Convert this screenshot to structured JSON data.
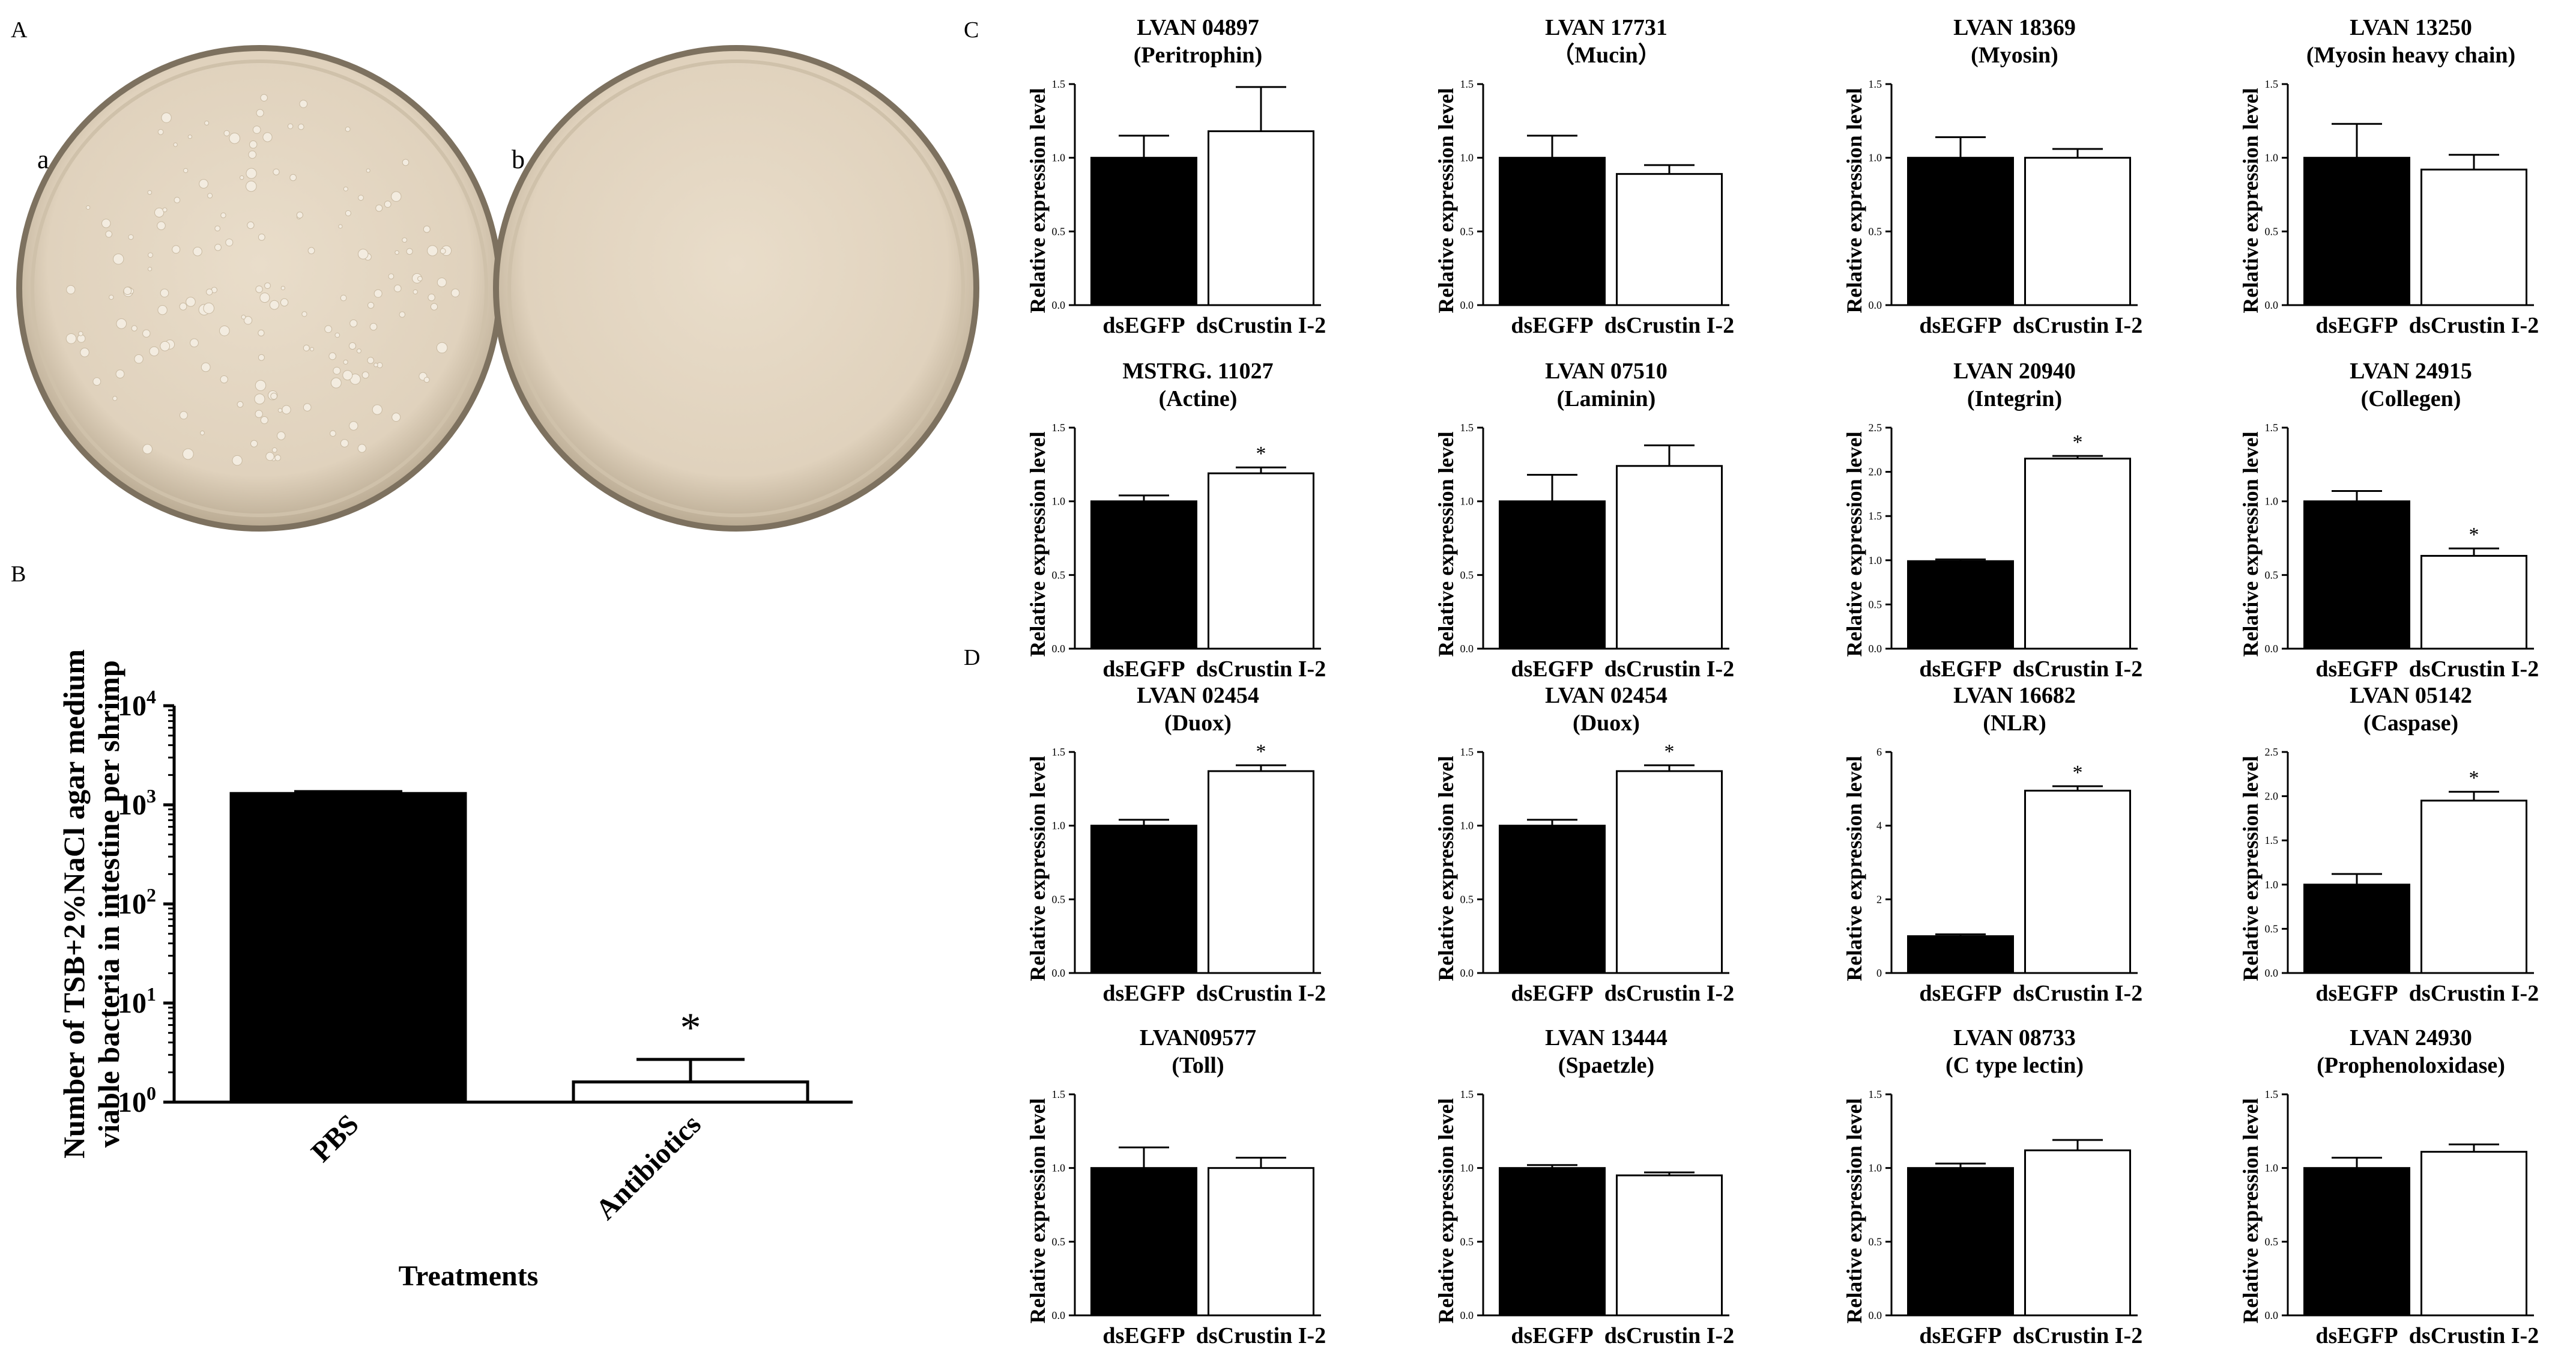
{
  "panel_labels": {
    "A": "A",
    "B": "B",
    "C": "C",
    "D": "D"
  },
  "plates": {
    "a": {
      "label": "a",
      "colonies": "many"
    },
    "b": {
      "label": "b",
      "colonies": "none"
    }
  },
  "colors": {
    "ink": "#000000",
    "plate_fill": "#e3d6c2",
    "plate_rim": "#8f8371",
    "colony": "#f4efe6"
  },
  "chart_data": [
    {
      "id": "B",
      "type": "bar",
      "scale": "log",
      "categories": [
        "PBS",
        "Antibiotics"
      ],
      "values": [
        1300,
        1.6
      ],
      "errors": [
        60,
        1.1
      ],
      "fills": [
        "#000000",
        "#ffffff"
      ],
      "sig": [
        "",
        "*"
      ],
      "ylabel_lines": [
        "Number of TSB+2%NaCl agar medium",
        "viable bacteria in intestine per shrimp"
      ],
      "xlabel": "Treatments",
      "yticks": [
        1,
        10,
        100,
        1000,
        10000
      ],
      "ytick_labels": [
        {
          "base": "10",
          "exp": "0"
        },
        {
          "base": "10",
          "exp": "1"
        },
        {
          "base": "10",
          "exp": "2"
        },
        {
          "base": "10",
          "exp": "3"
        },
        {
          "base": "10",
          "exp": "4"
        }
      ],
      "ylim": [
        1,
        10000
      ]
    },
    {
      "id": "C1",
      "type": "bar",
      "title": "LVAN 04897",
      "subtitle": "(Peritrophin)",
      "ylabel": "Relative expression level",
      "categories": [
        "dsEGFP",
        "dsCrustin I-2"
      ],
      "values": [
        1.0,
        1.18
      ],
      "errors": [
        0.15,
        0.3
      ],
      "sig": [
        "",
        ""
      ],
      "ylim": [
        0,
        1.5
      ],
      "yticks": [
        0.0,
        0.5,
        1.0,
        1.5
      ],
      "ytick_labels": [
        "0.0",
        "0.5",
        "1.0",
        "1.5"
      ]
    },
    {
      "id": "C2",
      "type": "bar",
      "title": "LVAN 17731",
      "subtitle": "（Mucin）",
      "ylabel": "Relative expression level",
      "categories": [
        "dsEGFP",
        "dsCrustin I-2"
      ],
      "values": [
        1.0,
        0.89
      ],
      "errors": [
        0.15,
        0.06
      ],
      "sig": [
        "",
        ""
      ],
      "ylim": [
        0,
        1.5
      ],
      "yticks": [
        0.0,
        0.5,
        1.0,
        1.5
      ],
      "ytick_labels": [
        "0.0",
        "0.5",
        "1.0",
        "1.5"
      ]
    },
    {
      "id": "C3",
      "type": "bar",
      "title": "LVAN 18369",
      "subtitle": "(Myosin)",
      "ylabel": "Relative expression level",
      "categories": [
        "dsEGFP",
        "dsCrustin I-2"
      ],
      "values": [
        1.0,
        1.0
      ],
      "errors": [
        0.14,
        0.06
      ],
      "sig": [
        "",
        ""
      ],
      "ylim": [
        0,
        1.5
      ],
      "yticks": [
        0.0,
        0.5,
        1.0,
        1.5
      ],
      "ytick_labels": [
        "0.0",
        "0.5",
        "1.0",
        "1.5"
      ]
    },
    {
      "id": "C4",
      "type": "bar",
      "title": "LVAN 13250",
      "subtitle": "(Myosin heavy chain)",
      "ylabel": "Relative expression level",
      "categories": [
        "dsEGFP",
        "dsCrustin I-2"
      ],
      "values": [
        1.0,
        0.92
      ],
      "errors": [
        0.23,
        0.1
      ],
      "sig": [
        "",
        ""
      ],
      "ylim": [
        0,
        1.5
      ],
      "yticks": [
        0.0,
        0.5,
        1.0,
        1.5
      ],
      "ytick_labels": [
        "0.0",
        "0.5",
        "1.0",
        "1.5"
      ]
    },
    {
      "id": "C5",
      "type": "bar",
      "title": "MSTRG. 11027",
      "subtitle": "(Actine)",
      "ylabel": "Relative expression level",
      "categories": [
        "dsEGFP",
        "dsCrustin I-2"
      ],
      "values": [
        1.0,
        1.19
      ],
      "errors": [
        0.04,
        0.04
      ],
      "sig": [
        "",
        "*"
      ],
      "ylim": [
        0,
        1.5
      ],
      "yticks": [
        0.0,
        0.5,
        1.0,
        1.5
      ],
      "ytick_labels": [
        "0.0",
        "0.5",
        "1.0",
        "1.5"
      ]
    },
    {
      "id": "C6",
      "type": "bar",
      "title": "LVAN 07510",
      "subtitle": "(Laminin)",
      "ylabel": "Relative expression level",
      "categories": [
        "dsEGFP",
        "dsCrustin I-2"
      ],
      "values": [
        1.0,
        1.24
      ],
      "errors": [
        0.18,
        0.14
      ],
      "sig": [
        "",
        ""
      ],
      "ylim": [
        0,
        1.5
      ],
      "yticks": [
        0.0,
        0.5,
        1.0,
        1.5
      ],
      "ytick_labels": [
        "0.0",
        "0.5",
        "1.0",
        "1.5"
      ]
    },
    {
      "id": "C7",
      "type": "bar",
      "title": "LVAN 20940",
      "subtitle": "(Integrin)",
      "ylabel": "Relative expression level",
      "categories": [
        "dsEGFP",
        "dsCrustin I-2"
      ],
      "values": [
        0.99,
        2.15
      ],
      "errors": [
        0.02,
        0.03
      ],
      "sig": [
        "",
        "*"
      ],
      "ylim": [
        0,
        2.5
      ],
      "yticks": [
        0.0,
        0.5,
        1.0,
        1.5,
        2.0,
        2.5
      ],
      "ytick_labels": [
        "0.0",
        "0.5",
        "1.0",
        "1.5",
        "2.0",
        "2.5"
      ]
    },
    {
      "id": "C8",
      "type": "bar",
      "title": "LVAN 24915",
      "subtitle": "(Collegen)",
      "ylabel": "Relative expression level",
      "categories": [
        "dsEGFP",
        "dsCrustin I-2"
      ],
      "values": [
        1.0,
        0.63
      ],
      "errors": [
        0.07,
        0.05
      ],
      "sig": [
        "",
        "*"
      ],
      "ylim": [
        0,
        1.5
      ],
      "yticks": [
        0.0,
        0.5,
        1.0,
        1.5
      ],
      "ytick_labels": [
        "0.0",
        "0.5",
        "1.0",
        "1.5"
      ]
    },
    {
      "id": "D1",
      "type": "bar",
      "title": "LVAN 02454",
      "subtitle": "(Duox)",
      "ylabel": "Relative expression level",
      "categories": [
        "dsEGFP",
        "dsCrustin I-2"
      ],
      "values": [
        1.0,
        1.37
      ],
      "errors": [
        0.04,
        0.04
      ],
      "sig": [
        "",
        "*"
      ],
      "ylim": [
        0,
        1.5
      ],
      "yticks": [
        0.0,
        0.5,
        1.0,
        1.5
      ],
      "ytick_labels": [
        "0.0",
        "0.5",
        "1.0",
        "1.5"
      ]
    },
    {
      "id": "D2",
      "type": "bar",
      "title": "LVAN 02454",
      "subtitle": "(Duox)",
      "ylabel": "Relative expression level",
      "categories": [
        "dsEGFP",
        "dsCrustin I-2"
      ],
      "values": [
        1.0,
        1.37
      ],
      "errors": [
        0.04,
        0.04
      ],
      "sig": [
        "",
        "*"
      ],
      "ylim": [
        0,
        1.5
      ],
      "yticks": [
        0.0,
        0.5,
        1.0,
        1.5
      ],
      "ytick_labels": [
        "0.0",
        "0.5",
        "1.0",
        "1.5"
      ]
    },
    {
      "id": "D3",
      "type": "bar",
      "title": "LVAN 16682",
      "subtitle": "(NLR)",
      "ylabel": "Relative expression level",
      "categories": [
        "dsEGFP",
        "dsCrustin I-2"
      ],
      "values": [
        1.0,
        4.95
      ],
      "errors": [
        0.05,
        0.12
      ],
      "sig": [
        "",
        "*"
      ],
      "ylim": [
        0,
        6
      ],
      "yticks": [
        0,
        2,
        4,
        6
      ],
      "ytick_labels": [
        "0",
        "2",
        "4",
        "6"
      ]
    },
    {
      "id": "D4",
      "type": "bar",
      "title": "LVAN 05142",
      "subtitle": "(Caspase)",
      "ylabel": "Relative expression level",
      "categories": [
        "dsEGFP",
        "dsCrustin I-2"
      ],
      "values": [
        1.0,
        1.95
      ],
      "errors": [
        0.12,
        0.1
      ],
      "sig": [
        "",
        "*"
      ],
      "ylim": [
        0,
        2.5
      ],
      "yticks": [
        0.0,
        0.5,
        1.0,
        1.5,
        2.0,
        2.5
      ],
      "ytick_labels": [
        "0.0",
        "0.5",
        "1.0",
        "1.5",
        "2.0",
        "2.5"
      ]
    },
    {
      "id": "D5",
      "type": "bar",
      "title": "LVAN09577",
      "subtitle": "(Toll)",
      "ylabel": "Relative expression level",
      "categories": [
        "dsEGFP",
        "dsCrustin I-2"
      ],
      "values": [
        1.0,
        1.0
      ],
      "errors": [
        0.14,
        0.07
      ],
      "sig": [
        "",
        ""
      ],
      "ylim": [
        0,
        1.5
      ],
      "yticks": [
        0.0,
        0.5,
        1.0,
        1.5
      ],
      "ytick_labels": [
        "0.0",
        "0.5",
        "1.0",
        "1.5"
      ]
    },
    {
      "id": "D6",
      "type": "bar",
      "title": "LVAN 13444",
      "subtitle": "(Spaetzle)",
      "ylabel": "Relative expression level",
      "categories": [
        "dsEGFP",
        "dsCrustin I-2"
      ],
      "values": [
        1.0,
        0.95
      ],
      "errors": [
        0.02,
        0.02
      ],
      "sig": [
        "",
        ""
      ],
      "ylim": [
        0,
        1.5
      ],
      "yticks": [
        0.0,
        0.5,
        1.0,
        1.5
      ],
      "ytick_labels": [
        "0.0",
        "0.5",
        "1.0",
        "1.5"
      ]
    },
    {
      "id": "D7",
      "type": "bar",
      "title": "LVAN 08733",
      "subtitle": "(C type lectin)",
      "ylabel": "Relative expression level",
      "categories": [
        "dsEGFP",
        "dsCrustin I-2"
      ],
      "values": [
        1.0,
        1.12
      ],
      "errors": [
        0.03,
        0.07
      ],
      "sig": [
        "",
        ""
      ],
      "ylim": [
        0,
        1.5
      ],
      "yticks": [
        0.0,
        0.5,
        1.0,
        1.5
      ],
      "ytick_labels": [
        "0.0",
        "0.5",
        "1.0",
        "1.5"
      ]
    },
    {
      "id": "D8",
      "type": "bar",
      "title": "LVAN 24930",
      "subtitle": "(Prophenoloxidase)",
      "ylabel": "Relative expression level",
      "categories": [
        "dsEGFP",
        "dsCrustin I-2"
      ],
      "values": [
        1.0,
        1.11
      ],
      "errors": [
        0.07,
        0.05
      ],
      "sig": [
        "",
        ""
      ],
      "ylim": [
        0,
        1.5
      ],
      "yticks": [
        0.0,
        0.5,
        1.0,
        1.5
      ],
      "ytick_labels": [
        "0.0",
        "0.5",
        "1.0",
        "1.5"
      ]
    }
  ]
}
